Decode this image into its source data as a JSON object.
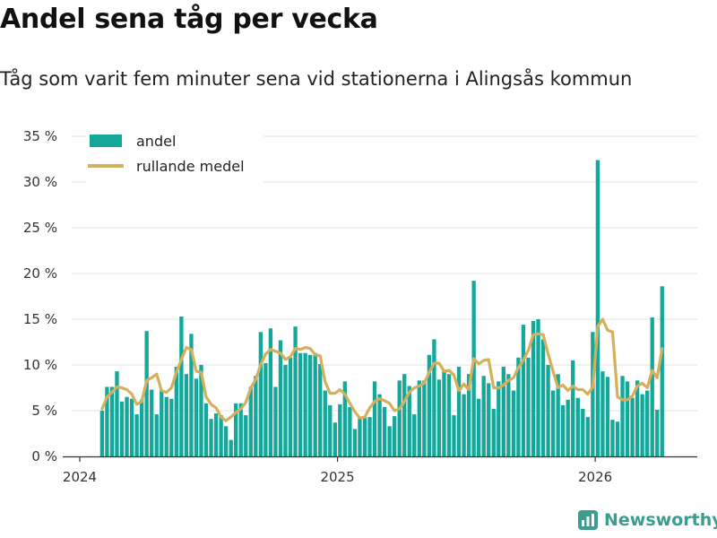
{
  "header": {
    "title": "Andel sena tåg per vecka",
    "subtitle": "Tåg som varit fem minuter sena vid stationerna i Alingsås kommun"
  },
  "brand": {
    "name": "Newsworthy",
    "icon": "newsworthy-logo-icon"
  },
  "colors": {
    "bar": "#14a89a",
    "line": "#d4b05e",
    "grid": "#e3e3e3",
    "axis": "#333333"
  },
  "chart_data": {
    "type": "bar",
    "title": "Andel sena tåg per vecka",
    "xlabel": "",
    "ylabel": "",
    "ylim": [
      0,
      35
    ],
    "yticks": [
      0,
      5,
      10,
      15,
      20,
      25,
      30,
      35
    ],
    "ytick_labels": [
      "0 %",
      "5 %",
      "10 %",
      "15 %",
      "20 %",
      "25 %",
      "30 %",
      "35 %"
    ],
    "xticks": [
      {
        "label": "2024",
        "week_index": 0
      },
      {
        "label": "2025",
        "week_index": 52
      },
      {
        "label": "2026",
        "week_index": 104
      }
    ],
    "legend": {
      "position": "top-left",
      "entries": [
        "andel",
        "rullande medel"
      ]
    },
    "first_week_index": 4,
    "series": [
      {
        "name": "andel",
        "kind": "bar",
        "values": [
          5.0,
          7.6,
          7.6,
          9.3,
          6.0,
          6.5,
          6.3,
          4.6,
          6.2,
          13.7,
          7.3,
          4.6,
          7.3,
          6.5,
          6.3,
          9.8,
          15.3,
          9.0,
          13.4,
          8.5,
          10.0,
          5.8,
          4.1,
          4.7,
          4.5,
          3.3,
          1.8,
          5.8,
          5.8,
          4.5,
          7.6,
          8.8,
          13.6,
          10.2,
          14.0,
          7.6,
          12.7,
          10.0,
          10.8,
          14.2,
          11.3,
          11.3,
          11.1,
          11.3,
          10.1,
          7.2,
          5.6,
          3.7,
          5.7,
          8.2,
          5.4,
          3.0,
          4.3,
          4.3,
          4.3,
          8.2,
          6.8,
          5.4,
          3.3,
          4.4,
          8.3,
          9.0,
          7.7,
          4.6,
          8.3,
          8.3,
          11.1,
          12.8,
          8.4,
          9.4,
          9.0,
          4.5,
          9.8,
          6.8,
          9.0,
          19.2,
          6.3,
          8.8,
          8.0,
          5.2,
          8.2,
          9.8,
          9.0,
          7.2,
          10.8,
          14.4,
          10.8,
          14.8,
          15.0,
          12.8,
          10.0,
          7.2,
          9.0,
          5.6,
          6.2,
          10.5,
          6.4,
          5.2,
          4.3,
          13.6,
          32.4,
          9.3,
          8.7,
          4.0,
          3.8,
          8.8,
          8.2,
          6.4,
          8.3,
          6.8,
          7.2,
          15.2,
          5.1,
          18.6
        ]
      },
      {
        "name": "rullande medel",
        "kind": "line",
        "values": [
          5.2,
          6.5,
          7.0,
          7.6,
          7.5,
          7.3,
          6.8,
          5.7,
          6.0,
          8.3,
          8.6,
          9.0,
          7.2,
          7.0,
          7.5,
          9.2,
          10.6,
          11.9,
          11.7,
          9.3,
          9.2,
          6.5,
          5.7,
          5.3,
          4.3,
          3.9,
          4.3,
          4.8,
          5.2,
          5.9,
          7.5,
          8.4,
          10.0,
          11.2,
          11.7,
          11.5,
          11.3,
          10.6,
          10.9,
          11.8,
          11.7,
          11.9,
          11.8,
          11.1,
          11.0,
          8.2,
          6.9,
          6.9,
          7.3,
          6.8,
          5.8,
          4.9,
          4.2,
          4.3,
          5.3,
          6.0,
          6.3,
          6.1,
          5.8,
          5.0,
          5.2,
          6.0,
          7.0,
          7.5,
          7.7,
          8.0,
          9.2,
          10.2,
          10.2,
          9.3,
          9.4,
          8.9,
          7.2,
          7.9,
          7.3,
          10.7,
          10.1,
          10.5,
          10.6,
          7.5,
          7.5,
          7.8,
          8.3,
          8.6,
          9.7,
          10.5,
          11.6,
          13.3,
          13.4,
          13.3,
          11.2,
          9.3,
          7.5,
          7.8,
          7.2,
          7.7,
          7.3,
          7.3,
          6.8,
          7.6,
          14.2,
          15.0,
          13.8,
          13.6,
          6.5,
          6.2,
          6.2,
          6.6,
          7.7,
          8.0,
          7.5,
          9.4,
          8.6,
          11.8
        ]
      }
    ]
  }
}
